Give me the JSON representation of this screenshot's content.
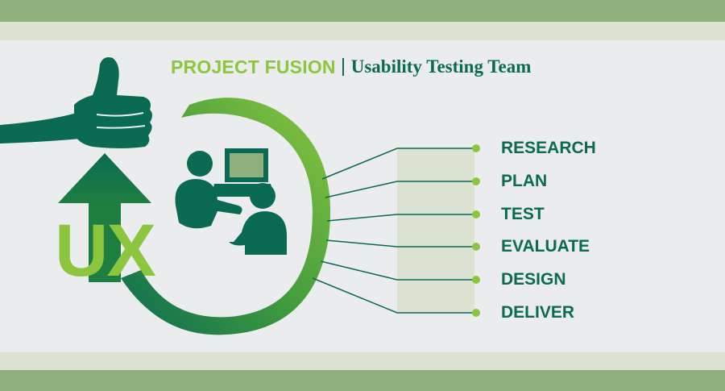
{
  "header": {
    "project": "PROJECT FUSION",
    "team": "Usability Testing Team"
  },
  "badge": {
    "text": "UX"
  },
  "steps": [
    {
      "label": "RESEARCH"
    },
    {
      "label": "PLAN"
    },
    {
      "label": "TEST"
    },
    {
      "label": "EVALUATE"
    },
    {
      "label": "DESIGN"
    },
    {
      "label": "DELIVER"
    }
  ],
  "colors": {
    "dark_green": "#0a6a52",
    "light_green": "#8cc63f",
    "band": "#8fb07c",
    "band_light": "#dce3d2",
    "background": "#ebeced"
  },
  "icons": [
    "thumbs-up-icon",
    "people-laptop-icon",
    "up-arrow-icon",
    "circular-arrow-icon"
  ]
}
